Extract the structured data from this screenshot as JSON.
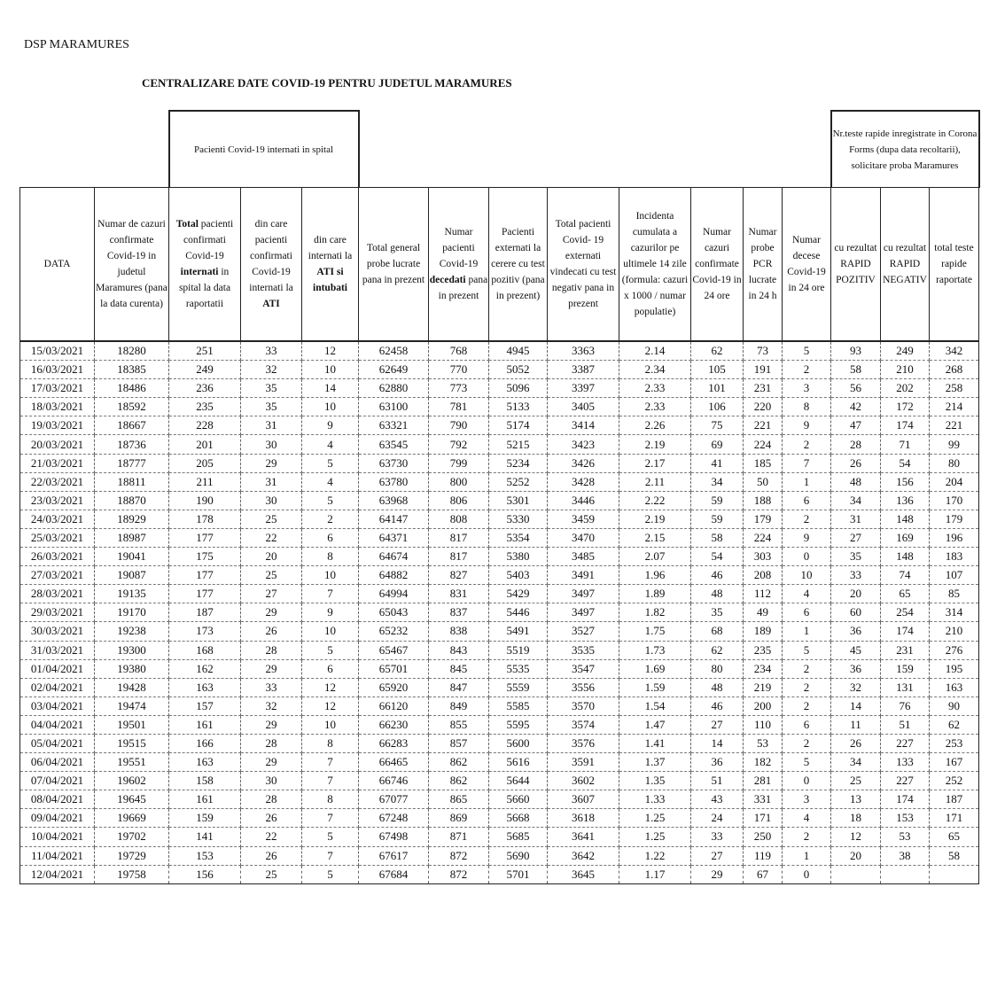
{
  "header": {
    "org": "DSP MARAMURES",
    "title": "CENTRALIZARE DATE COVID-19 PENTRU JUDETUL MARAMURES",
    "group_spital": "Pacienti Covid-19 internati in spital",
    "group_rapide": "Nr.teste rapide inregistrate in Corona Forms (dupa data recoltarii), solicitare proba Maramures"
  },
  "columns": [
    [
      {
        "t": "DATA"
      }
    ],
    [
      {
        "t": "Numar de cazuri confirmate Covid-19 in judetul Maramures (pana la data curenta)"
      }
    ],
    [
      {
        "t": "Total",
        "b": true
      },
      {
        "t": " pacienti confirmati Covid-19 "
      },
      {
        "t": "internati",
        "b": true
      },
      {
        "t": " in spital la data raportatii"
      }
    ],
    [
      {
        "t": "din care pacienti confirmati Covid-19 internati la "
      },
      {
        "t": "ATI",
        "b": true
      }
    ],
    [
      {
        "t": "din care internati la "
      },
      {
        "t": "ATI si intubati",
        "b": true
      }
    ],
    [
      {
        "t": "Total general probe lucrate pana in prezent"
      }
    ],
    [
      {
        "t": "Numar pacienti Covid-19 "
      },
      {
        "t": "decedati",
        "b": true
      },
      {
        "t": " pana in prezent"
      }
    ],
    [
      {
        "t": "Pacienti externati la cerere cu test pozitiv (pana in prezent)"
      }
    ],
    [
      {
        "t": "Total pacienti Covid- 19 externati vindecati cu test negativ pana in prezent"
      }
    ],
    [
      {
        "t": "Incidenta cumulata a cazurilor pe ultimele 14 zile (formula: cazuri x 1000 / numar populatie)"
      }
    ],
    [
      {
        "t": "Numar cazuri confirmate Covid-19 in 24 ore"
      }
    ],
    [
      {
        "t": "Numar probe PCR lucrate in 24 h"
      }
    ],
    [
      {
        "t": "Numar decese Covid-19 in 24 ore"
      }
    ],
    [
      {
        "t": "cu rezultat RAPID POZITIV"
      }
    ],
    [
      {
        "t": "cu rezultat RAPID NEGATIV"
      }
    ],
    [
      {
        "t": "total teste rapide raportate"
      }
    ]
  ],
  "rows": [
    [
      "15/03/2021",
      "18280",
      "251",
      "33",
      "12",
      "62458",
      "768",
      "4945",
      "3363",
      "2.14",
      "62",
      "73",
      "5",
      "93",
      "249",
      "342"
    ],
    [
      "16/03/2021",
      "18385",
      "249",
      "32",
      "10",
      "62649",
      "770",
      "5052",
      "3387",
      "2.34",
      "105",
      "191",
      "2",
      "58",
      "210",
      "268"
    ],
    [
      "17/03/2021",
      "18486",
      "236",
      "35",
      "14",
      "62880",
      "773",
      "5096",
      "3397",
      "2.33",
      "101",
      "231",
      "3",
      "56",
      "202",
      "258"
    ],
    [
      "18/03/2021",
      "18592",
      "235",
      "35",
      "10",
      "63100",
      "781",
      "5133",
      "3405",
      "2.33",
      "106",
      "220",
      "8",
      "42",
      "172",
      "214"
    ],
    [
      "19/03/2021",
      "18667",
      "228",
      "31",
      "9",
      "63321",
      "790",
      "5174",
      "3414",
      "2.26",
      "75",
      "221",
      "9",
      "47",
      "174",
      "221"
    ],
    [
      "20/03/2021",
      "18736",
      "201",
      "30",
      "4",
      "63545",
      "792",
      "5215",
      "3423",
      "2.19",
      "69",
      "224",
      "2",
      "28",
      "71",
      "99"
    ],
    [
      "21/03/2021",
      "18777",
      "205",
      "29",
      "5",
      "63730",
      "799",
      "5234",
      "3426",
      "2.17",
      "41",
      "185",
      "7",
      "26",
      "54",
      "80"
    ],
    [
      "22/03/2021",
      "18811",
      "211",
      "31",
      "4",
      "63780",
      "800",
      "5252",
      "3428",
      "2.11",
      "34",
      "50",
      "1",
      "48",
      "156",
      "204"
    ],
    [
      "23/03/2021",
      "18870",
      "190",
      "30",
      "5",
      "63968",
      "806",
      "5301",
      "3446",
      "2.22",
      "59",
      "188",
      "6",
      "34",
      "136",
      "170"
    ],
    [
      "24/03/2021",
      "18929",
      "178",
      "25",
      "2",
      "64147",
      "808",
      "5330",
      "3459",
      "2.19",
      "59",
      "179",
      "2",
      "31",
      "148",
      "179"
    ],
    [
      "25/03/2021",
      "18987",
      "177",
      "22",
      "6",
      "64371",
      "817",
      "5354",
      "3470",
      "2.15",
      "58",
      "224",
      "9",
      "27",
      "169",
      "196"
    ],
    [
      "26/03/2021",
      "19041",
      "175",
      "20",
      "8",
      "64674",
      "817",
      "5380",
      "3485",
      "2.07",
      "54",
      "303",
      "0",
      "35",
      "148",
      "183"
    ],
    [
      "27/03/2021",
      "19087",
      "177",
      "25",
      "10",
      "64882",
      "827",
      "5403",
      "3491",
      "1.96",
      "46",
      "208",
      "10",
      "33",
      "74",
      "107"
    ],
    [
      "28/03/2021",
      "19135",
      "177",
      "27",
      "7",
      "64994",
      "831",
      "5429",
      "3497",
      "1.89",
      "48",
      "112",
      "4",
      "20",
      "65",
      "85"
    ],
    [
      "29/03/2021",
      "19170",
      "187",
      "29",
      "9",
      "65043",
      "837",
      "5446",
      "3497",
      "1.82",
      "35",
      "49",
      "6",
      "60",
      "254",
      "314"
    ],
    [
      "30/03/2021",
      "19238",
      "173",
      "26",
      "10",
      "65232",
      "838",
      "5491",
      "3527",
      "1.75",
      "68",
      "189",
      "1",
      "36",
      "174",
      "210"
    ],
    [
      "31/03/2021",
      "19300",
      "168",
      "28",
      "5",
      "65467",
      "843",
      "5519",
      "3535",
      "1.73",
      "62",
      "235",
      "5",
      "45",
      "231",
      "276"
    ],
    [
      "01/04/2021",
      "19380",
      "162",
      "29",
      "6",
      "65701",
      "845",
      "5535",
      "3547",
      "1.69",
      "80",
      "234",
      "2",
      "36",
      "159",
      "195"
    ],
    [
      "02/04/2021",
      "19428",
      "163",
      "33",
      "12",
      "65920",
      "847",
      "5559",
      "3556",
      "1.59",
      "48",
      "219",
      "2",
      "32",
      "131",
      "163"
    ],
    [
      "03/04/2021",
      "19474",
      "157",
      "32",
      "12",
      "66120",
      "849",
      "5585",
      "3570",
      "1.54",
      "46",
      "200",
      "2",
      "14",
      "76",
      "90"
    ],
    [
      "04/04/2021",
      "19501",
      "161",
      "29",
      "10",
      "66230",
      "855",
      "5595",
      "3574",
      "1.47",
      "27",
      "110",
      "6",
      "11",
      "51",
      "62"
    ],
    [
      "05/04/2021",
      "19515",
      "166",
      "28",
      "8",
      "66283",
      "857",
      "5600",
      "3576",
      "1.41",
      "14",
      "53",
      "2",
      "26",
      "227",
      "253"
    ],
    [
      "06/04/2021",
      "19551",
      "163",
      "29",
      "7",
      "66465",
      "862",
      "5616",
      "3591",
      "1.37",
      "36",
      "182",
      "5",
      "34",
      "133",
      "167"
    ],
    [
      "07/04/2021",
      "19602",
      "158",
      "30",
      "7",
      "66746",
      "862",
      "5644",
      "3602",
      "1.35",
      "51",
      "281",
      "0",
      "25",
      "227",
      "252"
    ],
    [
      "08/04/2021",
      "19645",
      "161",
      "28",
      "8",
      "67077",
      "865",
      "5660",
      "3607",
      "1.33",
      "43",
      "331",
      "3",
      "13",
      "174",
      "187"
    ],
    [
      "09/04/2021",
      "19669",
      "159",
      "26",
      "7",
      "67248",
      "869",
      "5668",
      "3618",
      "1.25",
      "24",
      "171",
      "4",
      "18",
      "153",
      "171"
    ],
    [
      "10/04/2021",
      "19702",
      "141",
      "22",
      "5",
      "67498",
      "871",
      "5685",
      "3641",
      "1.25",
      "33",
      "250",
      "2",
      "12",
      "53",
      "65"
    ],
    [
      "11/04/2021",
      "19729",
      "153",
      "26",
      "7",
      "67617",
      "872",
      "5690",
      "3642",
      "1.22",
      "27",
      "119",
      "1",
      "20",
      "38",
      "58"
    ],
    [
      "12/04/2021",
      "19758",
      "156",
      "25",
      "5",
      "67684",
      "872",
      "5701",
      "3645",
      "1.17",
      "29",
      "67",
      "0",
      "",
      "",
      ""
    ]
  ]
}
